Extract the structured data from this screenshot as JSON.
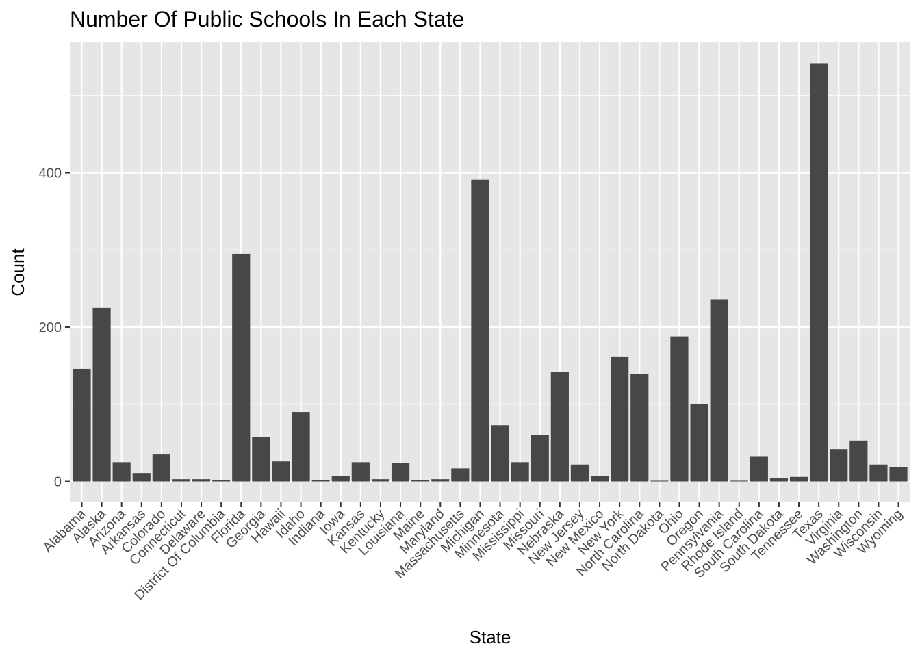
{
  "chart_data": {
    "type": "bar",
    "title": "Number Of Public Schools In Each State",
    "xlabel": "State",
    "ylabel": "Count",
    "ylim": [
      -27,
      569
    ],
    "y_ticks": [
      0,
      200,
      400
    ],
    "grid": true,
    "legend": "none",
    "colors": {
      "bar": "#474747",
      "panel": "#e6e6e6",
      "grid": "#ffffff",
      "axis_text": "#4d4d4d"
    },
    "categories": [
      "Alabama",
      "Alaska",
      "Arizona",
      "Arkansas",
      "Colorado",
      "Connecticut",
      "Delaware",
      "District Of Columbia",
      "Florida",
      "Georgia",
      "Hawaii",
      "Idaho",
      "Indiana",
      "Iowa",
      "Kansas",
      "Kentucky",
      "Louisiana",
      "Maine",
      "Maryland",
      "Massachusetts",
      "Michigan",
      "Minnesota",
      "Mississippi",
      "Missouri",
      "Nebraska",
      "New Jersey",
      "New Mexico",
      "New York",
      "North Carolina",
      "North Dakota",
      "Ohio",
      "Oregon",
      "Pennsylvania",
      "Rhode Island",
      "South Carolina",
      "South Dakota",
      "Tennessee",
      "Texas",
      "Virginia",
      "Washington",
      "Wisconsin",
      "Wyoming"
    ],
    "values": [
      146,
      225,
      25,
      11,
      35,
      3,
      3,
      2,
      295,
      58,
      26,
      90,
      2,
      7,
      25,
      3,
      24,
      2,
      3,
      17,
      391,
      73,
      25,
      60,
      142,
      22,
      7,
      162,
      139,
      1,
      188,
      100,
      236,
      1,
      32,
      4,
      6,
      542,
      42,
      53,
      22,
      19
    ]
  }
}
